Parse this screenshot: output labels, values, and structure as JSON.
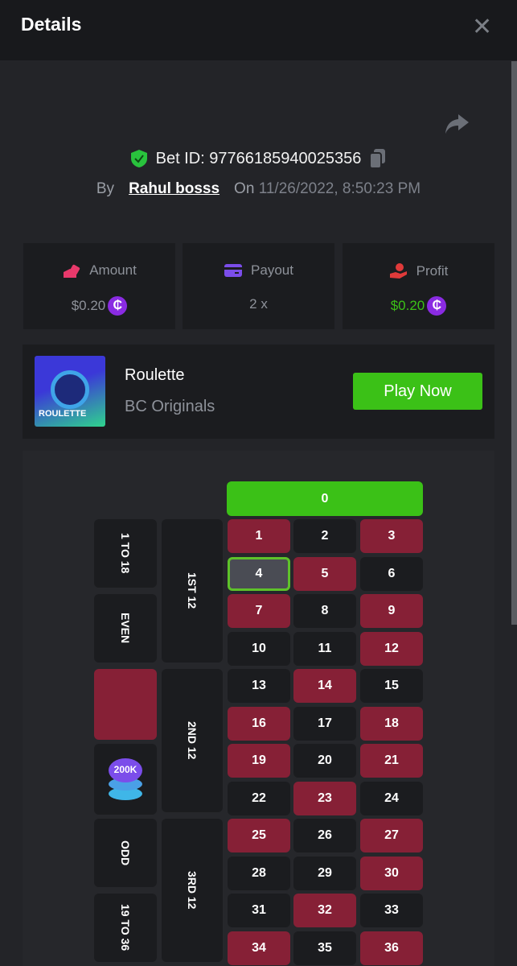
{
  "header": {
    "title": "Details",
    "close_icon": "close-icon"
  },
  "bet": {
    "id_label": "Bet ID: 97766185940025356",
    "by_label": "By",
    "user": "Rahul bosss",
    "on_label": "On",
    "date": "11/26/2022, 8:50:23 PM"
  },
  "stats": [
    {
      "label": "Amount",
      "value": "$0.20",
      "icon": "coins-hand-icon",
      "icon_color": "#e8396b",
      "value_color": "#8e929a",
      "coin": "₵"
    },
    {
      "label": "Payout",
      "value": "2 x",
      "icon": "card-icon",
      "icon_color": "#7b4dea",
      "value_color": "#8e929a"
    },
    {
      "label": "Profit",
      "value": "$0.20",
      "icon": "profit-icon",
      "icon_color": "#e03a3a",
      "value_color": "#3bc117",
      "coin": "₵"
    }
  ],
  "game": {
    "name": "Roulette",
    "provider": "BC Originals",
    "thumb_text": "ROULETTE",
    "play_label": "Play Now"
  },
  "board": {
    "zero": "0",
    "red_numbers": [
      1,
      3,
      5,
      7,
      9,
      12,
      14,
      16,
      18,
      19,
      21,
      23,
      25,
      27,
      30,
      32,
      34,
      36
    ],
    "selected": 4,
    "dozens": [
      "1ST 12",
      "2ND 12",
      "3RD 12"
    ],
    "outside": [
      "1 TO 18",
      "EVEN",
      "",
      "",
      "ODD",
      "19 TO 36"
    ],
    "chip_label": "200K",
    "colors": {
      "red": "#862036",
      "black": "#1b1c1f",
      "green": "#3bc117"
    }
  }
}
